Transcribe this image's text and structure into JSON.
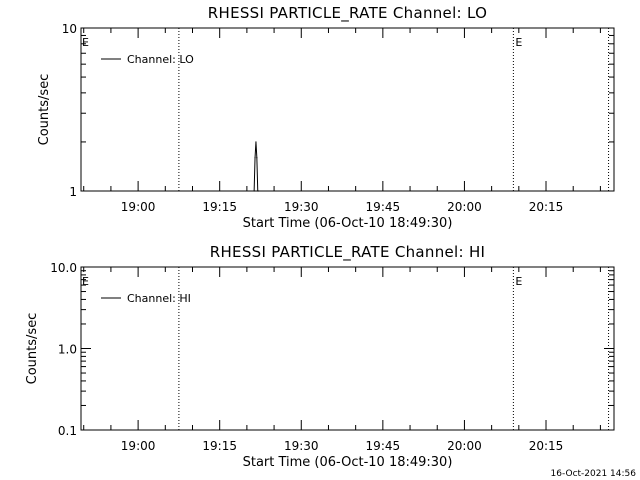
{
  "timestamp": "16-Oct-2021 14:56",
  "chart_data": [
    {
      "type": "line",
      "title": "RHESSI PARTICLE_RATE Channel: LO",
      "xlabel": "Start Time (06-Oct-10 18:49:30)",
      "ylabel": "Counts/sec",
      "y_scale": "log",
      "xlim": [
        "18:49:30",
        "20:27:30"
      ],
      "ylim": [
        1,
        10
      ],
      "x_ticks": [
        "19:00",
        "19:15",
        "19:30",
        "19:45",
        "20:00",
        "20:15"
      ],
      "y_ticks": [
        {
          "value": 1,
          "label": "1"
        },
        {
          "value": 10,
          "label": "10"
        }
      ],
      "grid": false,
      "legend_position": "top-left",
      "series": [
        {
          "name": "Channel: LO",
          "x": [
            "19:21:00",
            "19:21:20",
            "19:21:30",
            "19:21:40",
            "19:21:50",
            "19:22:00",
            "19:22:10",
            "19:22:20"
          ],
          "y": [
            0.9,
            1.0,
            1.6,
            2.0,
            1.6,
            1.0,
            1.0,
            0.9
          ]
        }
      ],
      "vertical_lines": [
        {
          "x": "19:07:30",
          "label": ""
        },
        {
          "x": "20:09:00",
          "label": "E"
        },
        {
          "x": "20:26:30",
          "label": ""
        }
      ],
      "edge_markers": [
        {
          "x": "18:49:30",
          "label": "E"
        }
      ]
    },
    {
      "type": "line",
      "title": "RHESSI PARTICLE_RATE Channel: HI",
      "xlabel": "Start Time (06-Oct-10 18:49:30)",
      "ylabel": "Counts/sec",
      "y_scale": "log",
      "xlim": [
        "18:49:30",
        "20:27:30"
      ],
      "ylim": [
        0.1,
        10
      ],
      "x_ticks": [
        "19:00",
        "19:15",
        "19:30",
        "19:45",
        "20:00",
        "20:15"
      ],
      "y_ticks": [
        {
          "value": 0.1,
          "label": "0.1"
        },
        {
          "value": 1,
          "label": "1.0"
        },
        {
          "value": 10,
          "label": "10.0"
        }
      ],
      "grid": false,
      "legend_position": "top-left",
      "series": [
        {
          "name": "Channel: HI",
          "x": [],
          "y": []
        }
      ],
      "vertical_lines": [
        {
          "x": "19:07:30",
          "label": ""
        },
        {
          "x": "20:09:00",
          "label": "E"
        },
        {
          "x": "20:26:30",
          "label": ""
        }
      ],
      "edge_markers": [
        {
          "x": "18:49:30",
          "label": "E"
        }
      ]
    }
  ]
}
